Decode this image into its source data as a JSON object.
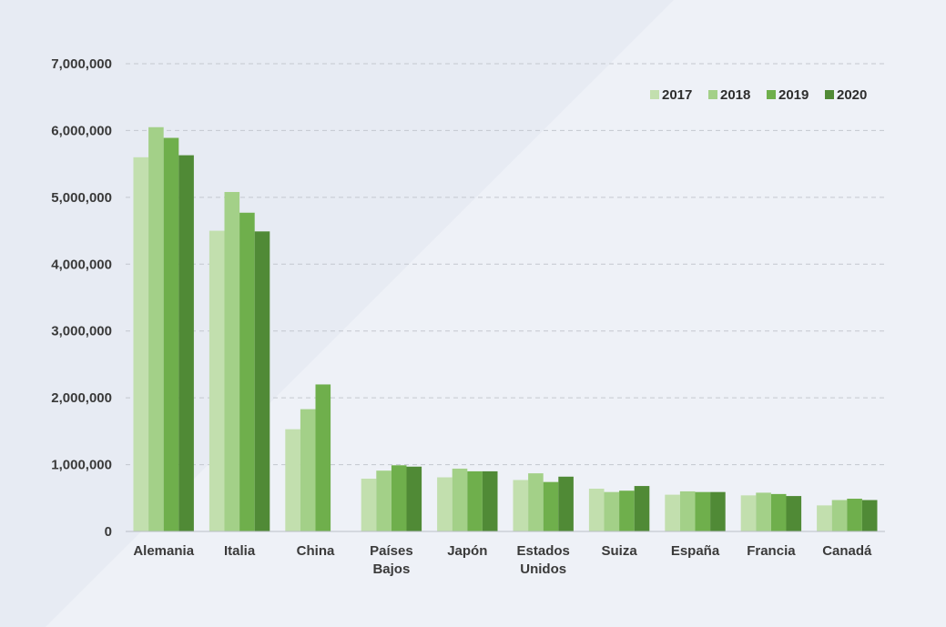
{
  "chart_data": {
    "type": "bar",
    "title": "",
    "xlabel": "",
    "ylabel": "",
    "ylim": [
      0,
      7000000
    ],
    "yticks": [
      0,
      1000000,
      2000000,
      3000000,
      4000000,
      5000000,
      6000000,
      7000000
    ],
    "ytick_labels": [
      "0",
      "1,000,000",
      "2,000,000",
      "3,000,000",
      "4,000,000",
      "5,000,000",
      "6,000,000",
      "7,000,000"
    ],
    "grid": true,
    "legend_position": "top-right",
    "categories": [
      [
        "Alemania"
      ],
      [
        "Italia"
      ],
      [
        "China"
      ],
      [
        "Países",
        "Bajos"
      ],
      [
        "Japón"
      ],
      [
        "Estados",
        "Unidos"
      ],
      [
        "Suiza"
      ],
      [
        "España"
      ],
      [
        "Francia"
      ],
      [
        "Canadá"
      ]
    ],
    "series": [
      {
        "name": "2017",
        "color": "#c2dfae",
        "values": [
          5600000,
          4500000,
          1530000,
          790000,
          810000,
          770000,
          640000,
          550000,
          540000,
          390000
        ]
      },
      {
        "name": "2018",
        "color": "#a3d088",
        "values": [
          6050000,
          5080000,
          1830000,
          910000,
          940000,
          870000,
          590000,
          600000,
          580000,
          470000
        ]
      },
      {
        "name": "2019",
        "color": "#6faf4c",
        "values": [
          5890000,
          4770000,
          2200000,
          990000,
          900000,
          740000,
          610000,
          590000,
          560000,
          490000
        ]
      },
      {
        "name": "2020",
        "color": "#508a36",
        "values": [
          5630000,
          4490000,
          null,
          970000,
          900000,
          820000,
          680000,
          590000,
          530000,
          470000
        ]
      }
    ]
  }
}
